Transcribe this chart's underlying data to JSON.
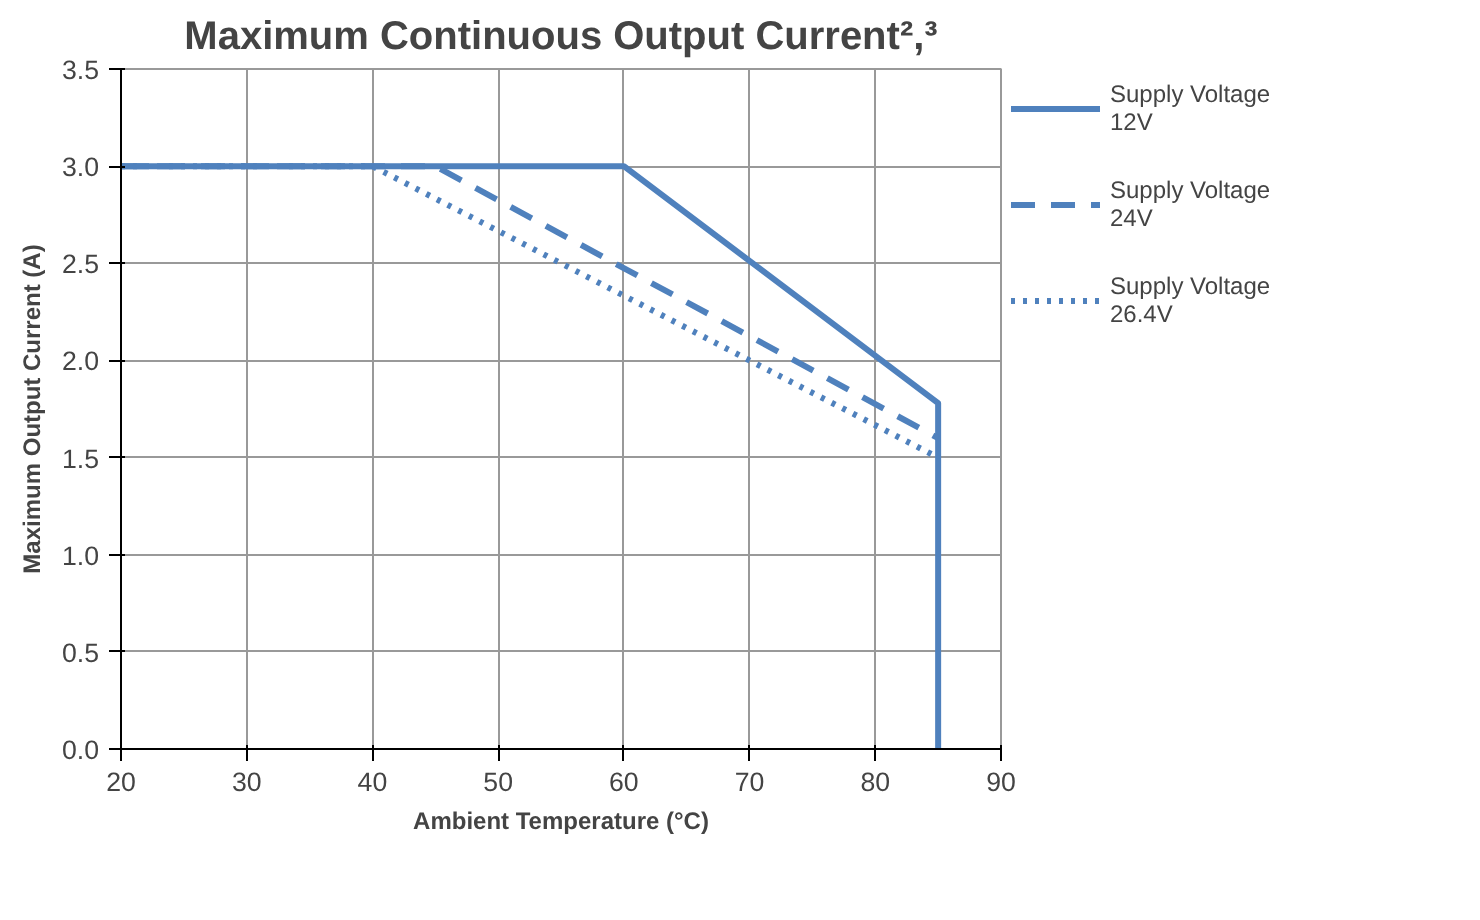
{
  "chart_data": {
    "type": "line",
    "title": "Maximum Continuous Output Current²,³",
    "xlabel": "Ambient Temperature (°C)",
    "ylabel": "Maximum Output Current (A)",
    "xlim": [
      20,
      90
    ],
    "xticks": [
      20,
      30,
      40,
      50,
      60,
      70,
      80,
      90
    ],
    "ylim": [
      0,
      3.5
    ],
    "yticks": [
      {
        "value": 0,
        "label": "0.0"
      },
      0.5,
      {
        "value": 1,
        "label": "1.0"
      },
      1.5,
      {
        "value": 2,
        "label": "2.0"
      },
      2.5,
      {
        "value": 3,
        "label": "3.0"
      },
      3.5
    ],
    "grid": true,
    "legend": "right",
    "series": [
      {
        "name": "Supply Voltage 12V",
        "color": "#4f81bd",
        "line_style": "solid",
        "x": [
          20,
          60,
          85,
          85
        ],
        "values": [
          3.0,
          3.0,
          1.78,
          0.0
        ]
      },
      {
        "name": "Supply Voltage 24V",
        "color": "#4f81bd",
        "line_style": "dashed",
        "x": [
          20,
          45,
          85
        ],
        "values": [
          3.0,
          3.0,
          1.6
        ]
      },
      {
        "name": "Supply Voltage 26.4V",
        "color": "#4f81bd",
        "line_style": "dotted",
        "x": [
          20,
          40,
          85
        ],
        "values": [
          3.0,
          3.0,
          1.5
        ]
      }
    ]
  }
}
